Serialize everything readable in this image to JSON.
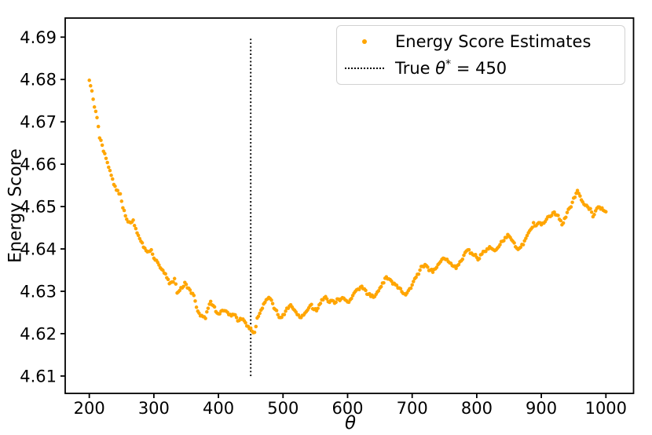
{
  "figure": {
    "background": "#ffffff"
  },
  "colors": {
    "scatter": "#FFA500",
    "vline": "#000000",
    "axis": "#000000",
    "tick_label": "#000000",
    "legend_border": "#d2d2d2"
  },
  "legend": {
    "energy_label": "Energy Score Estimates",
    "true_theta": {
      "prefix": "True ",
      "symbol": "θ",
      "sup": "*",
      "suffix": " = 450"
    }
  },
  "chart_data": {
    "type": "scatter",
    "title": "",
    "xlabel": "θ",
    "ylabel": "Energy Score",
    "xlim": [
      162.7,
      1042.8
    ],
    "ylim": [
      4.6059,
      4.6945
    ],
    "x_ticks": [
      200,
      300,
      400,
      500,
      600,
      700,
      800,
      900,
      1000
    ],
    "y_ticks": [
      4.61,
      4.62,
      4.63,
      4.64,
      4.65,
      4.66,
      4.67,
      4.68,
      4.69
    ],
    "grid": false,
    "legend_position": "upper right",
    "vline": {
      "x": 450,
      "y_from": 4.61,
      "y_to": 4.69,
      "color": "#000000",
      "style": "dotted",
      "label": "True θ* = 450"
    },
    "series": [
      {
        "name": "Energy Score Estimates",
        "marker": "dot",
        "color": "#FFA500",
        "points": [
          [
            200,
            4.6798
          ],
          [
            204,
            4.6773
          ],
          [
            208,
            4.6735
          ],
          [
            212,
            4.671
          ],
          [
            216,
            4.6662
          ],
          [
            220,
            4.6645
          ],
          [
            224,
            4.6625
          ],
          [
            228,
            4.6604
          ],
          [
            232,
            4.6585
          ],
          [
            236,
            4.6565
          ],
          [
            240,
            4.6548
          ],
          [
            244,
            4.6538
          ],
          [
            248,
            4.653
          ],
          [
            252,
            4.6497
          ],
          [
            256,
            4.6478
          ],
          [
            260,
            4.6464
          ],
          [
            264,
            4.6462
          ],
          [
            268,
            4.6468
          ],
          [
            272,
            4.6448
          ],
          [
            276,
            4.6432
          ],
          [
            280,
            4.6418
          ],
          [
            284,
            4.6404
          ],
          [
            288,
            4.6396
          ],
          [
            292,
            4.6394
          ],
          [
            296,
            4.6398
          ],
          [
            300,
            4.6378
          ],
          [
            304,
            4.6373
          ],
          [
            308,
            4.6362
          ],
          [
            312,
            4.6352
          ],
          [
            316,
            4.6343
          ],
          [
            320,
            4.6332
          ],
          [
            324,
            4.6318
          ],
          [
            328,
            4.6322
          ],
          [
            332,
            4.633
          ],
          [
            336,
            4.6296
          ],
          [
            340,
            4.6302
          ],
          [
            344,
            4.6308
          ],
          [
            348,
            4.6321
          ],
          [
            352,
            4.6308
          ],
          [
            356,
            4.6303
          ],
          [
            360,
            4.6295
          ],
          [
            364,
            4.6277
          ],
          [
            368,
            4.6253
          ],
          [
            372,
            4.6242
          ],
          [
            376,
            4.624
          ],
          [
            380,
            4.6236
          ],
          [
            384,
            4.626
          ],
          [
            388,
            4.6276
          ],
          [
            392,
            4.6266
          ],
          [
            396,
            4.6252
          ],
          [
            400,
            4.6247
          ],
          [
            404,
            4.6253
          ],
          [
            408,
            4.6254
          ],
          [
            412,
            4.6253
          ],
          [
            416,
            4.6245
          ],
          [
            420,
            4.6242
          ],
          [
            424,
            4.6245
          ],
          [
            428,
            4.6238
          ],
          [
            432,
            4.6231
          ],
          [
            436,
            4.6234
          ],
          [
            440,
            4.623
          ],
          [
            444,
            4.6218
          ],
          [
            448,
            4.6212
          ],
          [
            452,
            4.6206
          ],
          [
            456,
            4.6203
          ],
          [
            460,
            4.6237
          ],
          [
            464,
            4.6248
          ],
          [
            468,
            4.626
          ],
          [
            472,
            4.6274
          ],
          [
            476,
            4.6282
          ],
          [
            480,
            4.6283
          ],
          [
            484,
            4.6271
          ],
          [
            488,
            4.6257
          ],
          [
            492,
            4.6245
          ],
          [
            496,
            4.6238
          ],
          [
            500,
            4.6245
          ],
          [
            504,
            4.6253
          ],
          [
            508,
            4.626
          ],
          [
            512,
            4.6268
          ],
          [
            516,
            4.6258
          ],
          [
            520,
            4.6251
          ],
          [
            524,
            4.6244
          ],
          [
            528,
            4.6238
          ],
          [
            532,
            4.6244
          ],
          [
            536,
            4.6252
          ],
          [
            540,
            4.6261
          ],
          [
            544,
            4.6269
          ],
          [
            548,
            4.6257
          ],
          [
            552,
            4.6254
          ],
          [
            556,
            4.6268
          ],
          [
            560,
            4.628
          ],
          [
            564,
            4.6285
          ],
          [
            568,
            4.6282
          ],
          [
            572,
            4.6274
          ],
          [
            576,
            4.6278
          ],
          [
            580,
            4.6272
          ],
          [
            584,
            4.6282
          ],
          [
            588,
            4.6278
          ],
          [
            592,
            4.6285
          ],
          [
            596,
            4.628
          ],
          [
            600,
            4.6275
          ],
          [
            604,
            4.628
          ],
          [
            608,
            4.629
          ],
          [
            612,
            4.63
          ],
          [
            616,
            4.6305
          ],
          [
            620,
            4.631
          ],
          [
            624,
            4.6306
          ],
          [
            628,
            4.6302
          ],
          [
            632,
            4.6293
          ],
          [
            636,
            4.6288
          ],
          [
            640,
            4.6286
          ],
          [
            644,
            4.6293
          ],
          [
            648,
            4.6301
          ],
          [
            652,
            4.6311
          ],
          [
            656,
            4.632
          ],
          [
            660,
            4.6334
          ],
          [
            664,
            4.6329
          ],
          [
            668,
            4.6324
          ],
          [
            672,
            4.6319
          ],
          [
            676,
            4.6314
          ],
          [
            680,
            4.6308
          ],
          [
            684,
            4.6299
          ],
          [
            688,
            4.6294
          ],
          [
            692,
            4.6296
          ],
          [
            696,
            4.6306
          ],
          [
            700,
            4.6315
          ],
          [
            704,
            4.633
          ],
          [
            708,
            4.634
          ],
          [
            712,
            4.635
          ],
          [
            716,
            4.6359
          ],
          [
            720,
            4.6363
          ],
          [
            724,
            4.6357
          ],
          [
            728,
            4.635
          ],
          [
            732,
            4.6345
          ],
          [
            736,
            4.6353
          ],
          [
            740,
            4.6363
          ],
          [
            744,
            4.637
          ],
          [
            748,
            4.6378
          ],
          [
            752,
            4.6375
          ],
          [
            756,
            4.637
          ],
          [
            760,
            4.6366
          ],
          [
            764,
            4.6359
          ],
          [
            768,
            4.6354
          ],
          [
            772,
            4.6363
          ],
          [
            776,
            4.6372
          ],
          [
            780,
            4.6385
          ],
          [
            784,
            4.6395
          ],
          [
            788,
            4.6398
          ],
          [
            792,
            4.639
          ],
          [
            796,
            4.6385
          ],
          [
            800,
            4.638
          ],
          [
            804,
            4.6377
          ],
          [
            808,
            4.6388
          ],
          [
            812,
            4.6394
          ],
          [
            816,
            4.64
          ],
          [
            820,
            4.6405
          ],
          [
            824,
            4.64
          ],
          [
            828,
            4.6396
          ],
          [
            832,
            4.6402
          ],
          [
            836,
            4.641
          ],
          [
            840,
            4.6418
          ],
          [
            844,
            4.6427
          ],
          [
            848,
            4.6434
          ],
          [
            852,
            4.6427
          ],
          [
            856,
            4.6418
          ],
          [
            860,
            4.6405
          ],
          [
            864,
            4.6399
          ],
          [
            868,
            4.6404
          ],
          [
            872,
            4.641
          ],
          [
            876,
            4.6425
          ],
          [
            880,
            4.6438
          ],
          [
            884,
            4.6447
          ],
          [
            888,
            4.6462
          ],
          [
            892,
            4.6455
          ],
          [
            896,
            4.6462
          ],
          [
            900,
            4.6457
          ],
          [
            904,
            4.6461
          ],
          [
            908,
            4.647
          ],
          [
            912,
            4.6477
          ],
          [
            916,
            4.6479
          ],
          [
            920,
            4.6487
          ],
          [
            924,
            4.648
          ],
          [
            928,
            4.647
          ],
          [
            932,
            4.6457
          ],
          [
            936,
            4.6472
          ],
          [
            940,
            4.6486
          ],
          [
            944,
            4.6497
          ],
          [
            948,
            4.651
          ],
          [
            952,
            4.6522
          ],
          [
            956,
            4.6538
          ],
          [
            960,
            4.6525
          ],
          [
            964,
            4.6511
          ],
          [
            968,
            4.6503
          ],
          [
            972,
            4.6499
          ],
          [
            976,
            4.6495
          ],
          [
            980,
            4.6476
          ],
          [
            984,
            4.649
          ],
          [
            988,
            4.6499
          ],
          [
            992,
            4.6494
          ],
          [
            996,
            4.6491
          ],
          [
            1000,
            4.6488
          ]
        ]
      }
    ]
  }
}
